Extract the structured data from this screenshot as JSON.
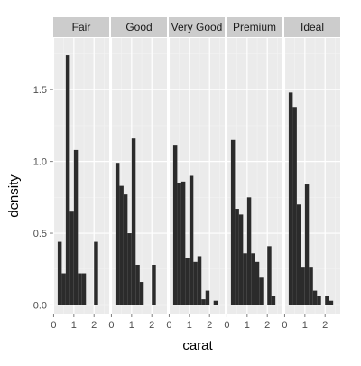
{
  "chart_data": {
    "type": "bar",
    "facet_by": "cut",
    "xlabel": "carat",
    "ylabel": "density",
    "ylim": [
      -0.06,
      1.86
    ],
    "yticks": [
      0.0,
      0.5,
      1.0,
      1.5
    ],
    "ytick_labels": [
      "0.0",
      "0.5",
      "1.0",
      "1.5"
    ],
    "xlim": [
      -0.02,
      2.75
    ],
    "xticks": [
      0,
      1,
      2
    ],
    "xtick_labels": [
      "0",
      "1",
      "2"
    ],
    "bin_start": 0.0,
    "bin_width": 0.2,
    "grid": true,
    "legend": "none",
    "colors": {
      "bar": "#2b2b2b",
      "panel_bg": "#ebebeb",
      "grid_major": "#ffffff",
      "grid_minor": "#f3f3f3",
      "strip_bg": "#cccccc"
    },
    "panels": [
      {
        "name": "Fair",
        "values": [
          0,
          0.44,
          0.22,
          1.74,
          0.65,
          1.08,
          0.22,
          0.22,
          0,
          0,
          0.44
        ]
      },
      {
        "name": "Good",
        "values": [
          0,
          0.99,
          0.83,
          0.77,
          0.5,
          1.16,
          0.28,
          0.16,
          0,
          0,
          0.28
        ]
      },
      {
        "name": "Very Good",
        "values": [
          0,
          1.11,
          0.85,
          0.86,
          0.33,
          0.9,
          0.3,
          0.34,
          0.04,
          0.1,
          0,
          0.03
        ]
      },
      {
        "name": "Premium",
        "values": [
          0,
          1.15,
          0.67,
          0.63,
          0.36,
          0.75,
          0.36,
          0.3,
          0.19,
          0,
          0.41,
          0.06
        ]
      },
      {
        "name": "Ideal",
        "values": [
          0,
          1.48,
          1.38,
          0.7,
          0.26,
          0.84,
          0.26,
          0.1,
          0.06,
          0,
          0.06,
          0.03
        ]
      }
    ]
  }
}
